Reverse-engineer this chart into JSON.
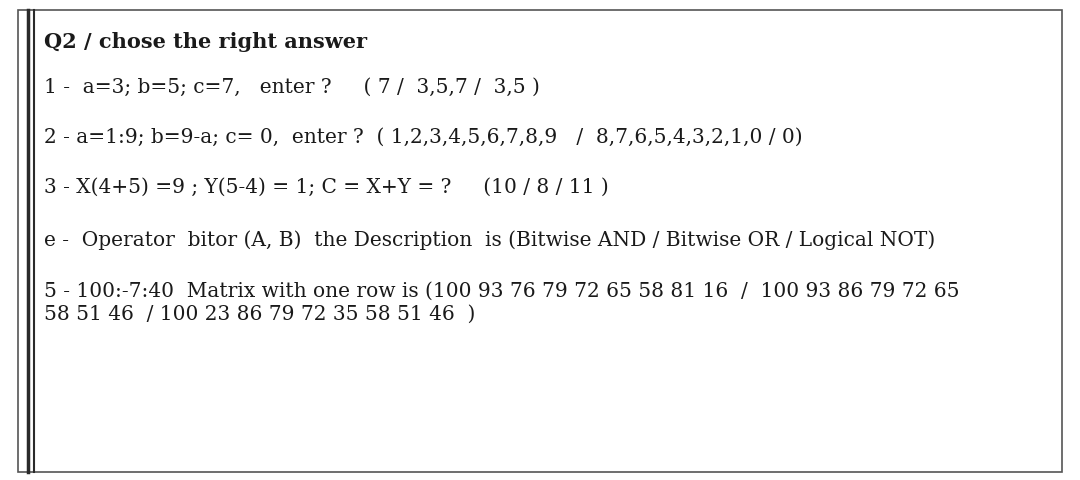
{
  "title": "Q2 / chose the right answer",
  "bg_color": "#ffffff",
  "text_color": "#1a1a1a",
  "font_size": 14.5,
  "title_font_size": 15,
  "figsize": [
    10.8,
    4.8
  ],
  "dpi": 100,
  "line1": "1 -  a=3; b=5; c=7,   enter ?     ( 7 /  3,5,7 /  3,5 )",
  "line2": "2 - a=1:9; b=9-a; c= 0,  enter ?  ( 1,2,3,4,5,6,7,8,9   /  8,7,6,5,4,3,2,1,0 / 0)",
  "line3": "3 - X(4+5) =9 ; Y(5-4) = 1; C = X+Y = ?     (10 / 8 / 11 )",
  "line4": "е -  Operator  bitor (A, B)  the Description  is (Bitwise AND / Bitwise OR / Logical NOT)",
  "line5a": "5 - 100:-7:40  Matrix with one row is (100 93 76 79 72 65 58 81 16  /  100 93 86 79 72 65",
  "line5b": "58 51 46  / 100 23 86 79 72 35 58 51 46  )"
}
